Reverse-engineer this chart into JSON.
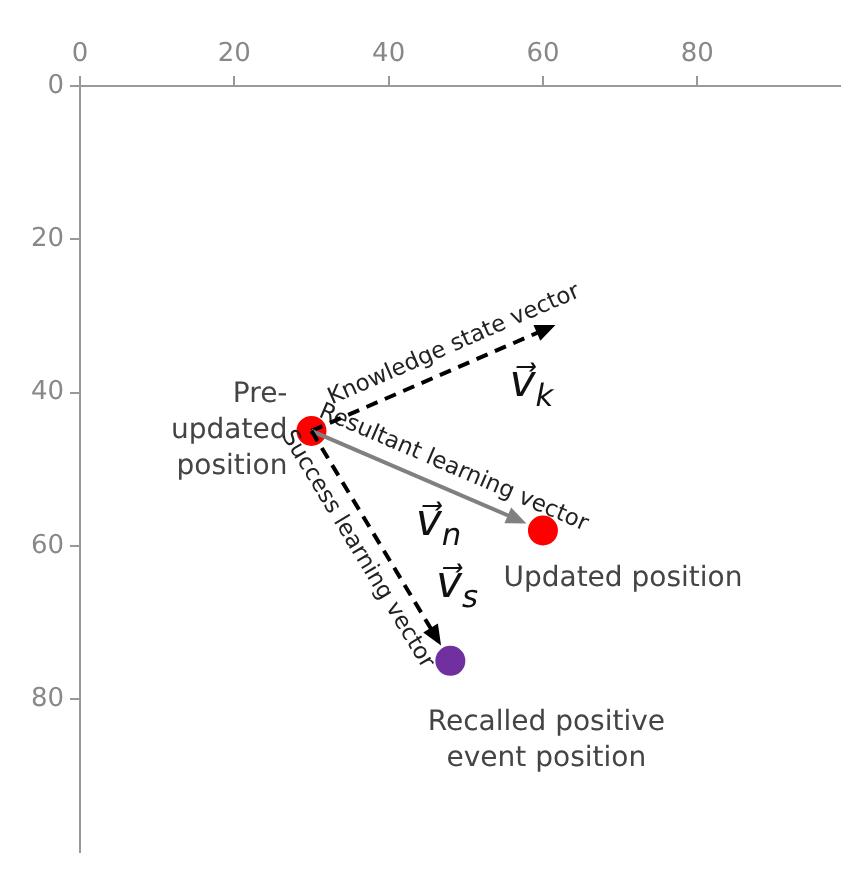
{
  "chart_data": {
    "type": "scatter",
    "xlim": [
      0,
      98.5
    ],
    "ylim": [
      100,
      0
    ],
    "xticks": [
      0,
      20,
      40,
      60,
      80
    ],
    "yticks": [
      0,
      20,
      40,
      60,
      80
    ],
    "grid": false,
    "legend": false,
    "series": [
      {
        "type": "scatter",
        "marker": "circle",
        "x": [
          30,
          60,
          48
        ],
        "values": [
          45,
          58,
          75
        ],
        "colors": [
          "#ff0000",
          "#ff0000",
          "#7030a0"
        ]
      }
    ],
    "annotations": [
      {
        "text": "Pre-\nupdated\nposition",
        "x": 30,
        "y": 45
      },
      {
        "text": "Updated position",
        "x": 60,
        "y": 58
      },
      {
        "text": "Recalled positive\nevent position",
        "x": 48,
        "y": 75
      },
      "Knowledge state vector",
      "Resultant learning vector",
      "Success learning vector",
      "v⃗$_{k}$",
      "v⃗$_{n}$",
      "v⃗$_{s}$"
    ]
  }
}
